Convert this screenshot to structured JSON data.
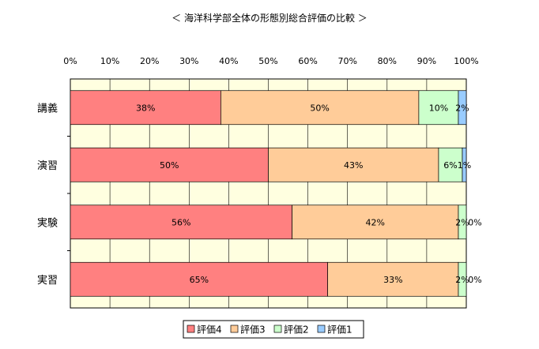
{
  "chart_data": {
    "type": "bar",
    "orientation": "horizontal",
    "stacked": "percent",
    "title": "＜ 海洋科学部全体の形態別総合評価の比較 ＞",
    "categories": [
      "講義",
      "演習",
      "実験",
      "実習"
    ],
    "series": [
      {
        "name": "評価4",
        "color": "#ff8080",
        "values": [
          38,
          50,
          56,
          65
        ],
        "labels": [
          "38%",
          "50%",
          "56%",
          "65%"
        ]
      },
      {
        "name": "評価3",
        "color": "#ffcc99",
        "values": [
          50,
          43,
          42,
          33
        ],
        "labels": [
          "50%",
          "43%",
          "42%",
          "33%"
        ]
      },
      {
        "name": "評価2",
        "color": "#ccffcc",
        "values": [
          10,
          6,
          2,
          2
        ],
        "labels": [
          "10%",
          "6%",
          "2%",
          "2%"
        ]
      },
      {
        "name": "評価1",
        "color": "#99ccff",
        "values": [
          2,
          1,
          0,
          0
        ],
        "labels": [
          "2%",
          "1%",
          "0%",
          "0%"
        ]
      }
    ],
    "xlim": [
      0,
      100
    ],
    "xticks": [
      "0%",
      "10%",
      "20%",
      "30%",
      "40%",
      "50%",
      "60%",
      "70%",
      "80%",
      "90%",
      "100%"
    ],
    "grid": true,
    "plot_background": "#ffffe0",
    "legend_position": "bottom"
  }
}
